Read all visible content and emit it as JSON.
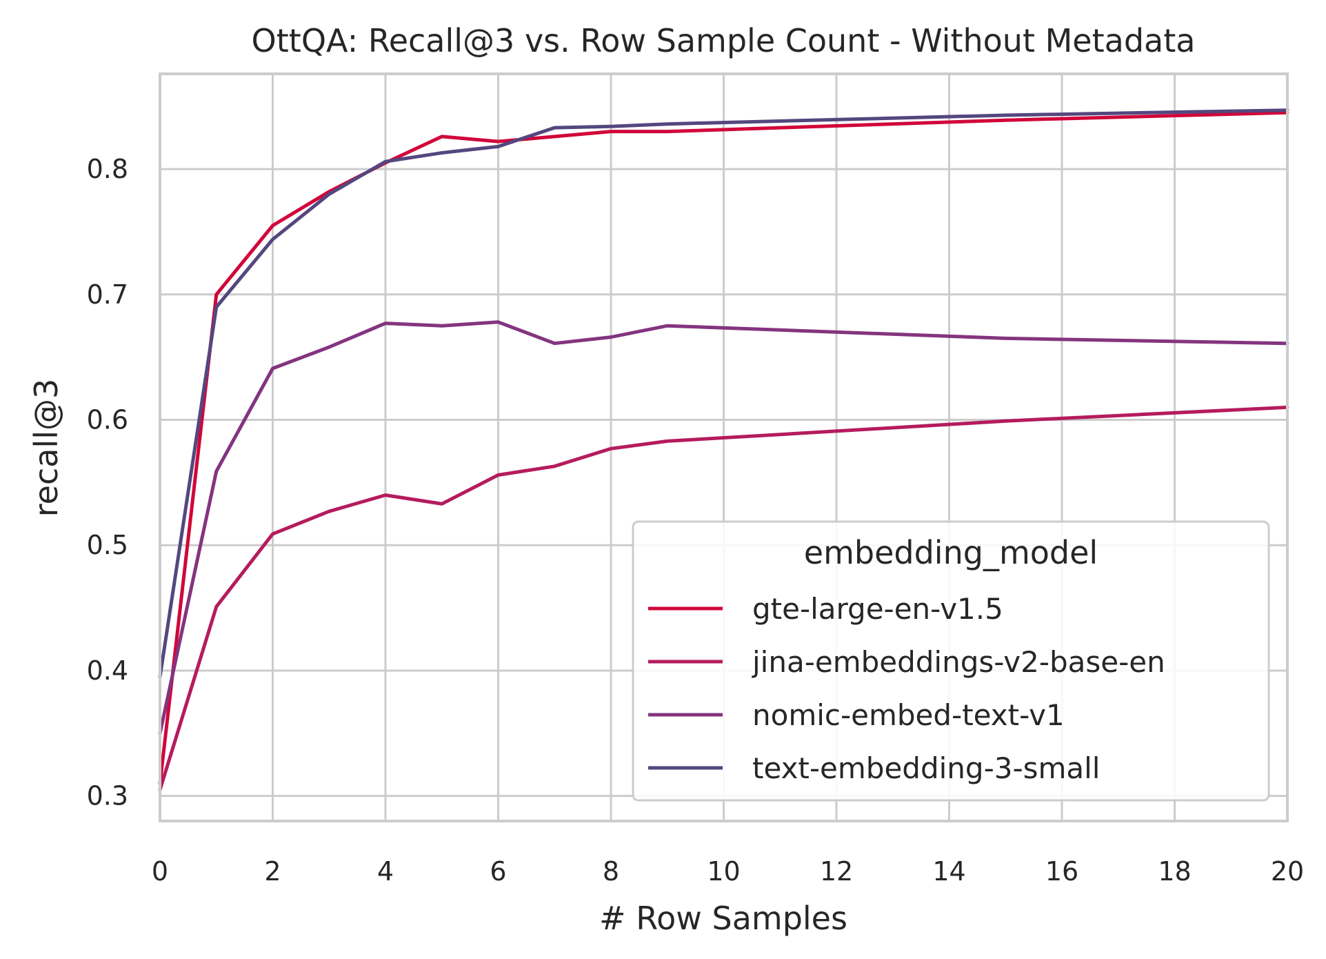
{
  "chart_data": {
    "type": "line",
    "title": "OttQA: Recall@3 vs. Row Sample Count - Without Metadata",
    "xlabel": "# Row Samples",
    "ylabel": "recall@3",
    "xlim": [
      0,
      20
    ],
    "ylim": [
      0.28,
      0.876
    ],
    "x_ticks": [
      0,
      2,
      4,
      6,
      8,
      10,
      12,
      14,
      16,
      18,
      20
    ],
    "x_tick_labels": [
      "0",
      "2",
      "4",
      "6",
      "8",
      "10",
      "12",
      "14",
      "16",
      "18",
      "20"
    ],
    "y_ticks": [
      0.3,
      0.4,
      0.5,
      0.6,
      0.7,
      0.8
    ],
    "y_tick_labels": [
      "0.3",
      "0.4",
      "0.5",
      "0.6",
      "0.7",
      "0.8"
    ],
    "grid": true,
    "legend": {
      "title": "embedding_model",
      "placement": "lower-right"
    },
    "x": [
      0,
      1,
      2,
      3,
      4,
      5,
      6,
      7,
      8,
      9,
      15,
      20
    ],
    "series": [
      {
        "name": "gte-large-en-v1.5",
        "color": "#d1063a",
        "values": [
          0.31,
          0.7,
          0.755,
          0.782,
          0.805,
          0.826,
          0.822,
          0.826,
          0.83,
          0.83,
          0.839,
          0.845
        ]
      },
      {
        "name": "jina-embeddings-v2-base-en",
        "color": "#b51b5d",
        "values": [
          0.305,
          0.451,
          0.509,
          0.527,
          0.54,
          0.533,
          0.556,
          0.563,
          0.577,
          0.583,
          0.599,
          0.61
        ]
      },
      {
        "name": "nomic-embed-text-v1",
        "color": "#84347f",
        "values": [
          0.35,
          0.559,
          0.641,
          0.658,
          0.677,
          0.675,
          0.678,
          0.661,
          0.666,
          0.675,
          0.665,
          0.661
        ]
      },
      {
        "name": "text-embedding-3-small",
        "color": "#54477f",
        "values": [
          0.395,
          0.69,
          0.744,
          0.78,
          0.806,
          0.813,
          0.818,
          0.833,
          0.834,
          0.836,
          0.843,
          0.847
        ]
      }
    ]
  }
}
